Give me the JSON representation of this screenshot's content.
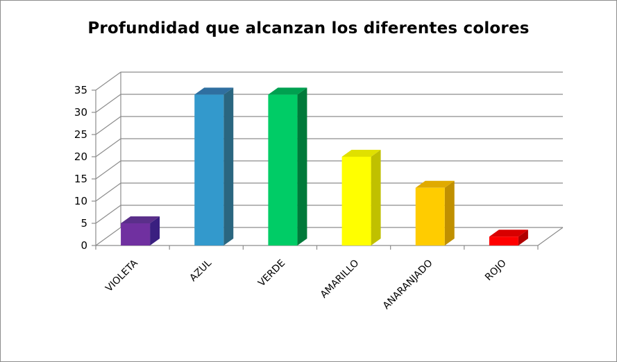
{
  "chart_data": {
    "type": "bar",
    "title": "Profundidad que alcanzan los diferentes colores",
    "xlabel": "",
    "ylabel": "",
    "ylim": [
      0,
      35
    ],
    "yticks": [
      0,
      5,
      10,
      15,
      20,
      25,
      30,
      35
    ],
    "grid": true,
    "legend": "none",
    "style": "3d-column",
    "categories": [
      "VIOLETA",
      "AZUL",
      "VERDE",
      "AMARILLO",
      "ANARANJADO",
      "ROJO"
    ],
    "values": [
      5,
      34,
      34,
      20,
      13,
      2
    ],
    "colors": [
      {
        "front": "#7030a0",
        "side": "#3a1f80",
        "top": "#5a2f8a"
      },
      {
        "front": "#3399cc",
        "side": "#2a6680",
        "top": "#2f6fa0"
      },
      {
        "front": "#00cc66",
        "side": "#007a3a",
        "top": "#00a050"
      },
      {
        "front": "#ffff00",
        "side": "#c0c000",
        "top": "#e0e000"
      },
      {
        "front": "#ffcc00",
        "side": "#c09000",
        "top": "#e0aa00"
      },
      {
        "front": "#ff0000",
        "side": "#b00000",
        "top": "#d80000"
      }
    ]
  }
}
